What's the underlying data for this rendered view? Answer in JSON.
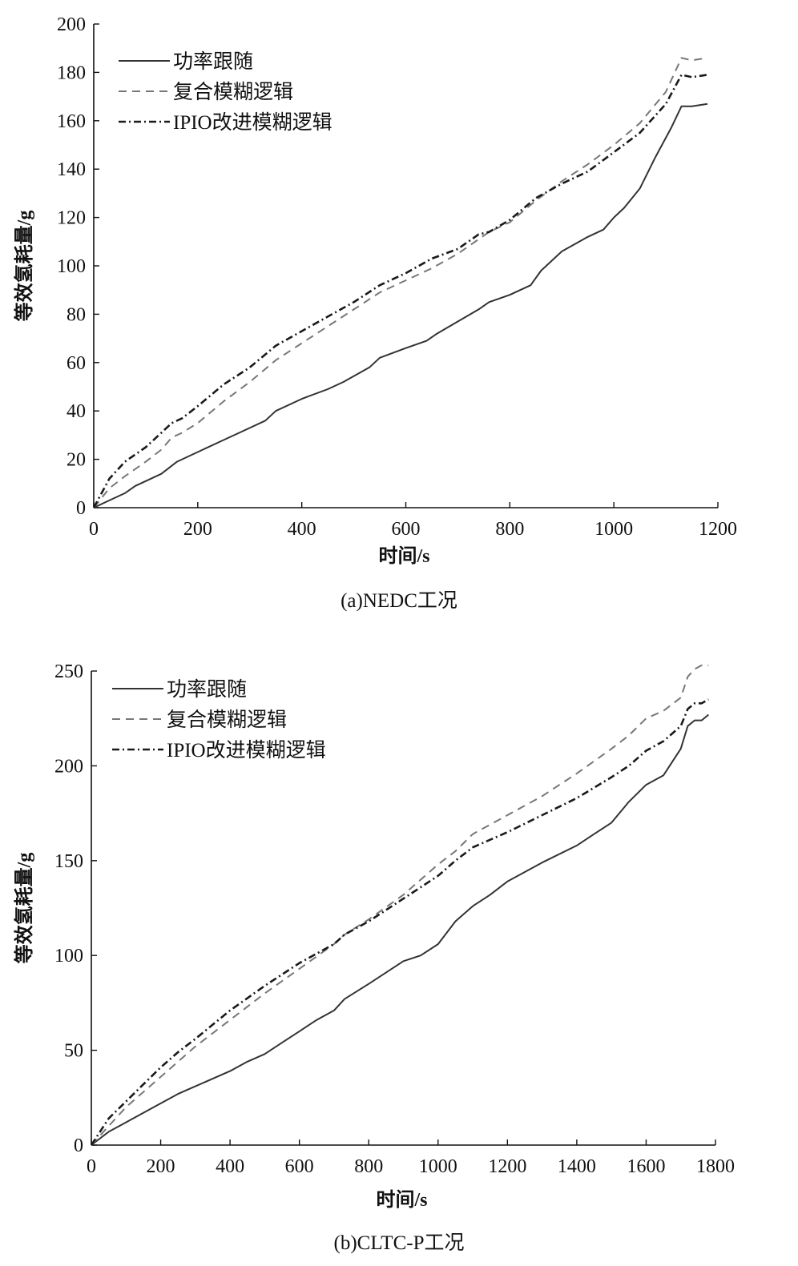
{
  "chart_data": [
    {
      "type": "line",
      "caption": "(a)NEDC工况",
      "xlabel": "时间/s",
      "ylabel": "等效氢耗量/g",
      "xlim": [
        0,
        1200
      ],
      "ylim": [
        0,
        200
      ],
      "xticks": [
        0,
        200,
        400,
        600,
        800,
        1000,
        1200
      ],
      "yticks": [
        0,
        20,
        40,
        60,
        80,
        100,
        120,
        140,
        160,
        180,
        200
      ],
      "legend_position": "top-left",
      "grid": false,
      "series": [
        {
          "name": "功率跟随",
          "style": "solid",
          "color": "#333333",
          "x": [
            0,
            30,
            60,
            80,
            100,
            130,
            160,
            200,
            250,
            280,
            330,
            350,
            400,
            450,
            480,
            530,
            550,
            600,
            640,
            660,
            700,
            740,
            760,
            800,
            820,
            840,
            860,
            900,
            950,
            980,
            1000,
            1020,
            1050,
            1080,
            1110,
            1130,
            1150,
            1180
          ],
          "y": [
            0,
            3,
            6,
            9,
            11,
            14,
            19,
            23,
            28,
            31,
            36,
            40,
            45,
            49,
            52,
            58,
            62,
            66,
            69,
            72,
            77,
            82,
            85,
            88,
            90,
            92,
            98,
            106,
            112,
            115,
            120,
            124,
            132,
            145,
            157,
            166,
            166,
            167
          ]
        },
        {
          "name": "复合模糊逻辑",
          "style": "dashed",
          "color": "#777777",
          "x": [
            0,
            30,
            60,
            80,
            100,
            130,
            150,
            170,
            200,
            250,
            300,
            350,
            400,
            450,
            500,
            550,
            600,
            650,
            700,
            740,
            760,
            800,
            850,
            900,
            950,
            1000,
            1050,
            1100,
            1130,
            1150,
            1180
          ],
          "y": [
            0,
            8,
            13,
            16,
            19,
            24,
            29,
            31,
            35,
            44,
            52,
            61,
            68,
            75,
            82,
            89,
            94,
            99,
            105,
            111,
            114,
            118,
            127,
            135,
            142,
            150,
            159,
            172,
            186,
            185,
            186
          ]
        },
        {
          "name": "IPIO改进模糊逻辑",
          "style": "dashdot",
          "color": "#1a1a1a",
          "x": [
            0,
            30,
            60,
            80,
            100,
            130,
            150,
            170,
            200,
            250,
            300,
            350,
            400,
            450,
            500,
            550,
            600,
            650,
            700,
            740,
            760,
            800,
            850,
            900,
            950,
            1000,
            1050,
            1100,
            1130,
            1150,
            1180
          ],
          "y": [
            0,
            12,
            19,
            22,
            25,
            31,
            35,
            37,
            42,
            51,
            58,
            67,
            73,
            79,
            85,
            92,
            97,
            103,
            107,
            113,
            114,
            119,
            128,
            134,
            139,
            147,
            155,
            167,
            179,
            178,
            179
          ]
        }
      ]
    },
    {
      "type": "line",
      "caption": "(b)CLTC-P工况",
      "xlabel": "时间/s",
      "ylabel": "等效氢耗量/g",
      "xlim": [
        0,
        1800
      ],
      "ylim": [
        0,
        250
      ],
      "xticks": [
        0,
        200,
        400,
        600,
        800,
        1000,
        1200,
        1400,
        1600,
        1800
      ],
      "yticks": [
        0,
        50,
        100,
        150,
        200,
        250
      ],
      "legend_position": "top-left",
      "grid": false,
      "series": [
        {
          "name": "功率跟随",
          "style": "solid",
          "color": "#333333",
          "x": [
            0,
            50,
            100,
            150,
            200,
            250,
            300,
            400,
            450,
            500,
            550,
            600,
            650,
            700,
            730,
            800,
            900,
            950,
            1000,
            1050,
            1100,
            1150,
            1200,
            1300,
            1400,
            1450,
            1500,
            1550,
            1600,
            1650,
            1700,
            1720,
            1740,
            1760,
            1780
          ],
          "y": [
            0,
            7,
            12,
            17,
            22,
            27,
            31,
            39,
            44,
            48,
            54,
            60,
            66,
            71,
            77,
            85,
            97,
            100,
            106,
            118,
            126,
            132,
            139,
            149,
            158,
            164,
            170,
            181,
            190,
            195,
            209,
            221,
            224,
            224,
            227
          ]
        },
        {
          "name": "复合模糊逻辑",
          "style": "dashed",
          "color": "#777777",
          "x": [
            0,
            50,
            100,
            150,
            200,
            250,
            300,
            400,
            500,
            600,
            700,
            730,
            800,
            900,
            1000,
            1050,
            1100,
            1200,
            1300,
            1400,
            1500,
            1550,
            1600,
            1650,
            1700,
            1720,
            1740,
            1760,
            1780
          ],
          "y": [
            0,
            10,
            20,
            28,
            36,
            44,
            52,
            66,
            80,
            93,
            106,
            111,
            119,
            132,
            148,
            155,
            164,
            174,
            184,
            196,
            209,
            216,
            225,
            229,
            236,
            247,
            251,
            253,
            253
          ]
        },
        {
          "name": "IPIO改进模糊逻辑",
          "style": "dashdot",
          "color": "#1a1a1a",
          "x": [
            0,
            50,
            100,
            150,
            200,
            250,
            300,
            400,
            500,
            600,
            700,
            730,
            800,
            900,
            1000,
            1050,
            1100,
            1200,
            1300,
            1400,
            1500,
            1550,
            1600,
            1650,
            1700,
            1720,
            1740,
            1760,
            1780
          ],
          "y": [
            0,
            14,
            23,
            32,
            41,
            49,
            56,
            71,
            84,
            96,
            106,
            111,
            118,
            130,
            142,
            150,
            157,
            165,
            174,
            183,
            194,
            200,
            208,
            213,
            221,
            230,
            233,
            233,
            235
          ]
        }
      ]
    }
  ]
}
